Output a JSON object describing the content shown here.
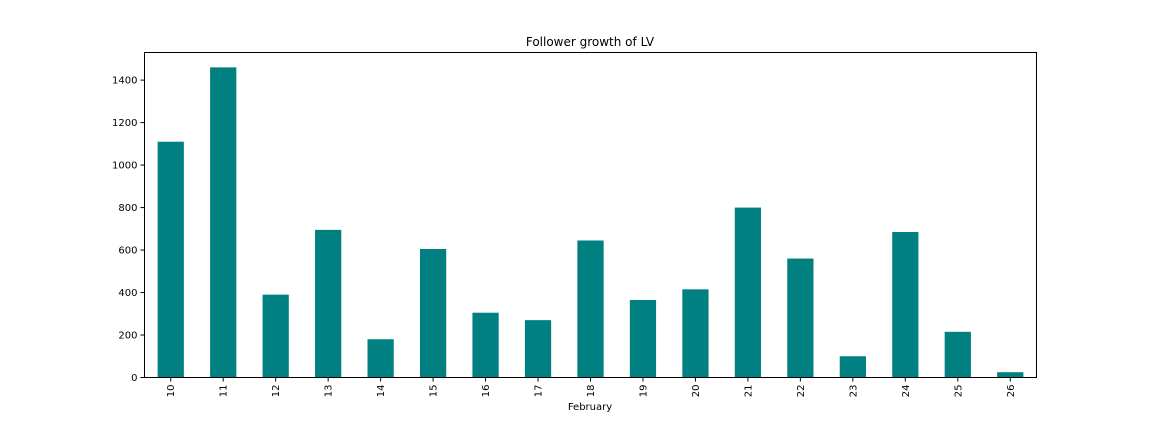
{
  "chart_data": {
    "type": "bar",
    "title": "Follower growth of LV",
    "xlabel": "February",
    "ylabel": "",
    "categories": [
      "10",
      "11",
      "12",
      "13",
      "14",
      "15",
      "16",
      "17",
      "18",
      "19",
      "20",
      "21",
      "22",
      "23",
      "24",
      "25",
      "26"
    ],
    "values": [
      1110,
      1460,
      390,
      695,
      180,
      605,
      305,
      270,
      645,
      365,
      415,
      800,
      560,
      100,
      685,
      215,
      25
    ],
    "ylim": [
      0,
      1530
    ],
    "yticks": [
      0,
      200,
      400,
      600,
      800,
      1000,
      1200,
      1400
    ],
    "bar_color": "#008080",
    "grid": false,
    "legend": "none"
  }
}
